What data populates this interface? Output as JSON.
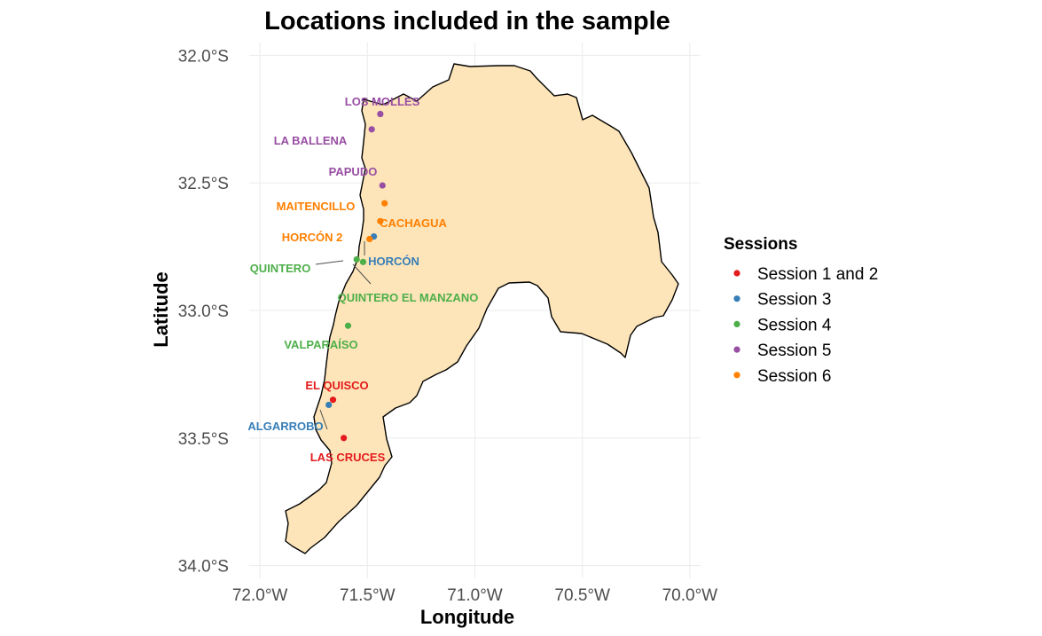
{
  "map": {
    "title": "Locations included in the sample",
    "xlabel": "Longitude",
    "ylabel": "Latitude",
    "region_fill": "#FDE5B9",
    "region_outline": "#000000",
    "grid": true,
    "x_ticks": [
      {
        "value": -72.0,
        "label": "72.0°W"
      },
      {
        "value": -71.5,
        "label": "71.5°W"
      },
      {
        "value": -71.0,
        "label": "71.0°W"
      },
      {
        "value": -70.5,
        "label": "70.5°W"
      },
      {
        "value": -70.0,
        "label": "70.0°W"
      }
    ],
    "y_ticks": [
      {
        "value": -32.0,
        "label": "32.0°S"
      },
      {
        "value": -32.5,
        "label": "32.5°S"
      },
      {
        "value": -33.0,
        "label": "33.0°S"
      },
      {
        "value": -33.5,
        "label": "33.5°S"
      },
      {
        "value": -34.0,
        "label": "34.0°S"
      }
    ]
  },
  "legend": {
    "title": "Sessions",
    "items": [
      {
        "label": "Session 1 and 2",
        "color": "#E41A1C"
      },
      {
        "label": "Session 3",
        "color": "#377EB8"
      },
      {
        "label": "Session 4",
        "color": "#4DAF4A"
      },
      {
        "label": "Session 5",
        "color": "#984EA3"
      },
      {
        "label": "Session 6",
        "color": "#FF7F00"
      }
    ]
  },
  "chart_data": {
    "type": "scatter",
    "title": "Locations included in the sample",
    "xlabel": "Longitude",
    "ylabel": "Latitude",
    "xlim": [
      -72.05,
      -69.95
    ],
    "ylim": [
      -34.05,
      -31.95
    ],
    "grid": true,
    "legend_placement": "right",
    "series": [
      {
        "name": "Session 1 and 2",
        "color": "#E41A1C",
        "points": [
          {
            "label": "EL QUISCO",
            "lon": -71.66,
            "lat": -33.35
          },
          {
            "label": "LAS CRUCES",
            "lon": -71.61,
            "lat": -33.5
          }
        ]
      },
      {
        "name": "Session 3",
        "color": "#377EB8",
        "points": [
          {
            "label": "HORCÓN",
            "lon": -71.47,
            "lat": -32.71
          },
          {
            "label": "ALGARROBO",
            "lon": -71.68,
            "lat": -33.37
          }
        ]
      },
      {
        "name": "Session 4",
        "color": "#4DAF4A",
        "points": [
          {
            "label": "QUINTERO",
            "lon": -71.55,
            "lat": -32.8
          },
          {
            "label": "QUINTERO EL MANZANO",
            "lon": -71.52,
            "lat": -32.81
          },
          {
            "label": "VALPARAÍSO",
            "lon": -71.59,
            "lat": -33.06
          }
        ]
      },
      {
        "name": "Session 5",
        "color": "#984EA3",
        "points": [
          {
            "label": "LOS MOLLES",
            "lon": -71.44,
            "lat": -32.23
          },
          {
            "label": "LA BALLENA",
            "lon": -71.48,
            "lat": -32.29
          },
          {
            "label": "PAPUDO",
            "lon": -71.43,
            "lat": -32.51
          }
        ]
      },
      {
        "name": "Session 6",
        "color": "#FF7F00",
        "points": [
          {
            "label": "MAITENCILLO",
            "lon": -71.42,
            "lat": -32.58
          },
          {
            "label": "CACHAGUA",
            "lon": -71.44,
            "lat": -32.65
          },
          {
            "label": "HORCÓN 2",
            "lon": -71.49,
            "lat": -32.72
          }
        ]
      }
    ]
  }
}
